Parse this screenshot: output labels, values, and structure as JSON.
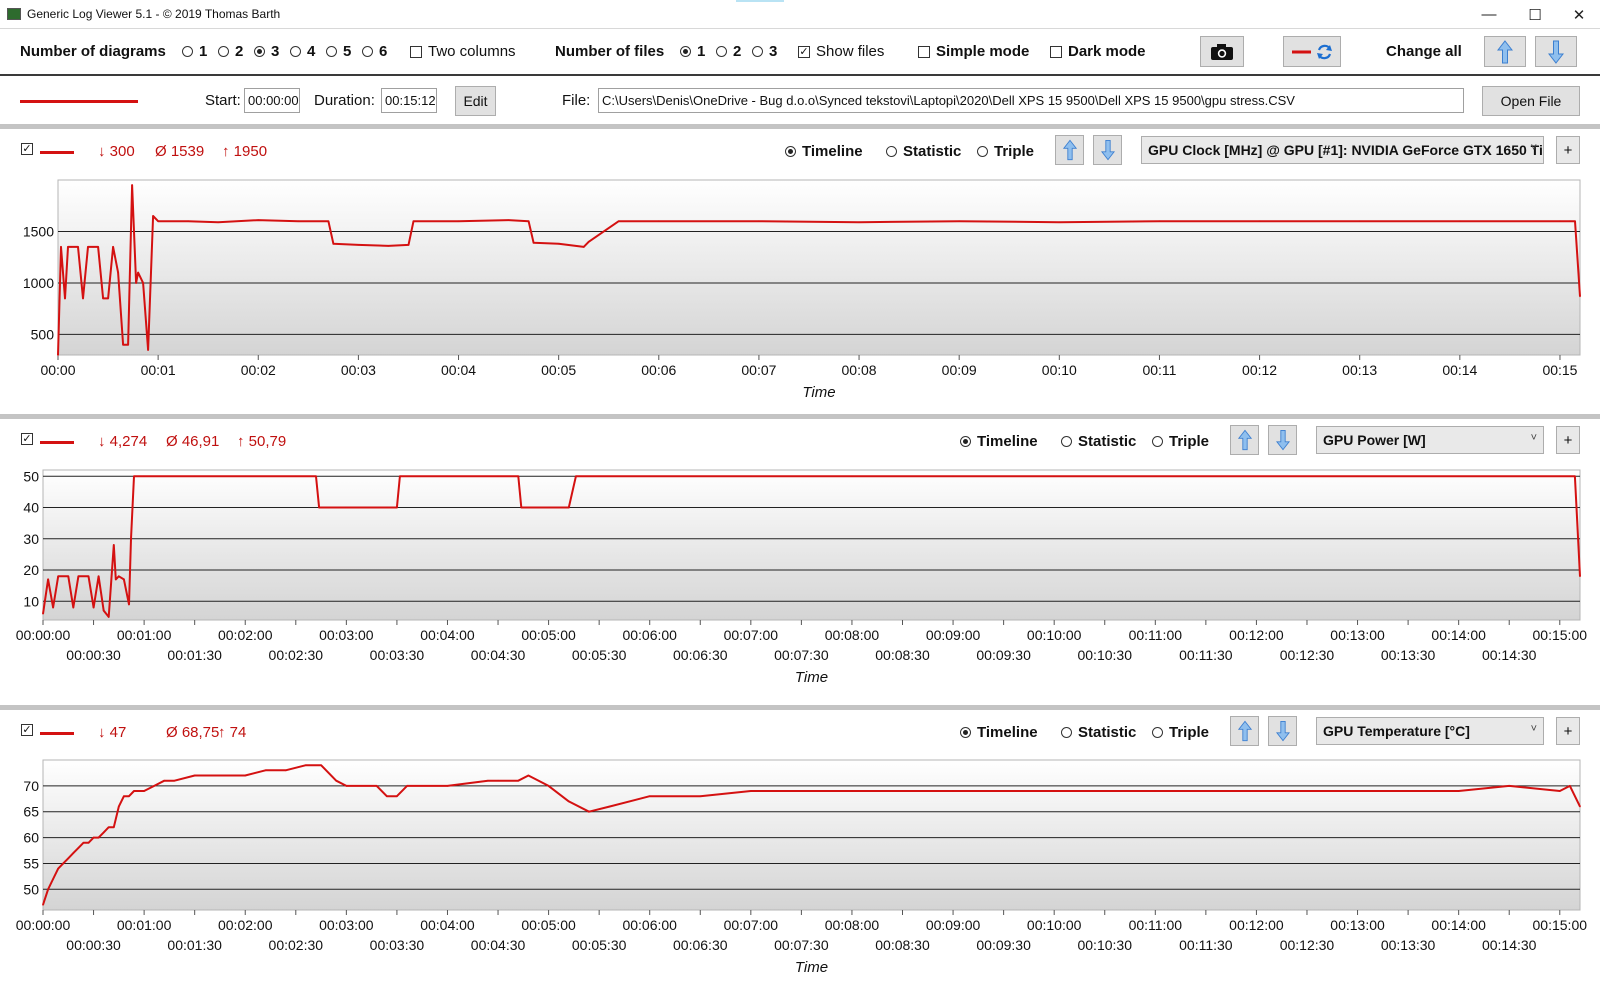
{
  "window": {
    "title": "Generic Log Viewer 5.1 - © 2019 Thomas Barth",
    "minimize_glyph": "—",
    "maximize_glyph": "☐",
    "close_glyph": "✕"
  },
  "toolbar": {
    "diagrams_label": "Number of diagrams",
    "diagram_options": [
      "1",
      "2",
      "3",
      "4",
      "5",
      "6"
    ],
    "diagrams_selected": "3",
    "two_columns_label": "Two columns",
    "files_label": "Number of files",
    "file_options": [
      "1",
      "2",
      "3"
    ],
    "files_selected": "1",
    "show_files_label": "Show files",
    "show_files_checked": true,
    "simple_mode_label": "Simple mode",
    "dark_mode_label": "Dark mode",
    "screenshot_icon": "camera-icon",
    "swap_icon": "swap-icon",
    "change_all_label": "Change all"
  },
  "file_row": {
    "start_label": "Start:",
    "start_value": "00:00:00",
    "duration_label": "Duration:",
    "duration_value": "00:15:12",
    "edit_label": "Edit",
    "file_label": "File:",
    "file_path": "C:\\Users\\Denis\\OneDrive - Bug d.o.o\\Synced tekstovi\\Laptopi\\2020\\Dell XPS 15 9500\\Dell XPS 15 9500\\gpu stress.CSV",
    "open_file_label": "Open File",
    "line_color": "#d41111"
  },
  "mode_labels": {
    "timeline": "Timeline",
    "statistic": "Statistic",
    "triple": "Triple"
  },
  "panels": [
    {
      "min": "↓ 300",
      "avg": "Ø 1539",
      "max": "↑ 1950",
      "sensor": "GPU Clock [MHz] @ GPU [#1]: NVIDIA GeForce GTX 1650 Ti:",
      "mode": "Timeline",
      "plus": "+"
    },
    {
      "min": "↓ 4,274",
      "avg": "Ø 46,91",
      "max": "↑ 50,79",
      "sensor": "GPU Power [W]",
      "mode": "Timeline",
      "plus": "+"
    },
    {
      "min": "↓ 47",
      "avg": "Ø 68,75",
      "max": "↑ 74",
      "sensor": "GPU Temperature [°C]",
      "mode": "Timeline",
      "plus": "+"
    }
  ],
  "chart_data": [
    {
      "type": "line",
      "xlabel": "Time",
      "x_unit": "minutes",
      "xlim": [
        0,
        15.2
      ],
      "ylim": [
        300,
        2000
      ],
      "yticks": [
        500,
        1000,
        1500
      ],
      "ytick_labels": [
        "500",
        "1000",
        "1500"
      ],
      "xticks": [
        0,
        1,
        2,
        3,
        4,
        5,
        6,
        7,
        8,
        9,
        10,
        11,
        12,
        13,
        14,
        15
      ],
      "xtick_labels": [
        "00:00",
        "00:01",
        "00:02",
        "00:03",
        "00:04",
        "00:05",
        "00:06",
        "00:07",
        "00:08",
        "00:09",
        "00:10",
        "00:11",
        "00:12",
        "00:13",
        "00:14",
        "00:15"
      ],
      "grid": true,
      "color": "#d41111",
      "x": [
        0,
        0.03,
        0.07,
        0.1,
        0.13,
        0.2,
        0.25,
        0.3,
        0.35,
        0.4,
        0.45,
        0.5,
        0.55,
        0.6,
        0.65,
        0.7,
        0.74,
        0.78,
        0.8,
        0.85,
        0.9,
        0.95,
        1.0,
        1.3,
        1.6,
        2.0,
        2.4,
        2.7,
        2.75,
        3.0,
        3.3,
        3.5,
        3.55,
        4.0,
        4.5,
        4.7,
        4.75,
        5.0,
        5.25,
        5.3,
        5.6,
        6.0,
        7.0,
        8.0,
        9.0,
        10.0,
        11.0,
        12.0,
        13.0,
        14.0,
        15.0,
        15.1,
        15.15,
        15.2
      ],
      "y": [
        300,
        1350,
        850,
        1350,
        1350,
        1350,
        850,
        1350,
        1350,
        1350,
        850,
        850,
        1350,
        1100,
        400,
        400,
        1950,
        1000,
        1100,
        1000,
        350,
        1650,
        1600,
        1600,
        1590,
        1610,
        1600,
        1600,
        1380,
        1370,
        1360,
        1370,
        1600,
        1600,
        1610,
        1600,
        1390,
        1380,
        1350,
        1400,
        1600,
        1600,
        1600,
        1590,
        1600,
        1590,
        1600,
        1600,
        1600,
        1600,
        1600,
        1600,
        1600,
        870
      ]
    },
    {
      "type": "line",
      "xlabel": "Time",
      "x_unit": "minutes",
      "xlim": [
        0,
        15.2
      ],
      "ylim": [
        4,
        52
      ],
      "yticks": [
        10,
        20,
        30,
        40,
        50
      ],
      "ytick_labels": [
        "10",
        "20",
        "30",
        "40",
        "50"
      ],
      "xticks": [
        0,
        0.5,
        1,
        1.5,
        2,
        2.5,
        3,
        3.5,
        4,
        4.5,
        5,
        5.5,
        6,
        6.5,
        7,
        7.5,
        8,
        8.5,
        9,
        9.5,
        10,
        10.5,
        11,
        11.5,
        12,
        12.5,
        13,
        13.5,
        14,
        14.5,
        15
      ],
      "xtick_labels": [
        "00:00:00",
        "00:00:30",
        "00:01:00",
        "00:01:30",
        "00:02:00",
        "00:02:30",
        "00:03:00",
        "00:03:30",
        "00:04:00",
        "00:04:30",
        "00:05:00",
        "00:05:30",
        "00:06:00",
        "00:06:30",
        "00:07:00",
        "00:07:30",
        "00:08:00",
        "00:08:30",
        "00:09:00",
        "00:09:30",
        "00:10:00",
        "00:10:30",
        "00:11:00",
        "00:11:30",
        "00:12:00",
        "00:12:30",
        "00:13:00",
        "00:13:30",
        "00:14:00",
        "00:14:30",
        "00:15:00"
      ],
      "grid": true,
      "color": "#d41111",
      "x": [
        0,
        0.05,
        0.1,
        0.15,
        0.25,
        0.3,
        0.35,
        0.4,
        0.45,
        0.5,
        0.55,
        0.6,
        0.65,
        0.7,
        0.72,
        0.75,
        0.8,
        0.85,
        0.87,
        0.9,
        1.0,
        1.5,
        2.0,
        2.5,
        2.7,
        2.73,
        3.0,
        3.4,
        3.5,
        3.53,
        4.0,
        4.5,
        4.7,
        4.73,
        5.0,
        5.2,
        5.27,
        5.5,
        6.0,
        7.0,
        8.0,
        9.0,
        10.0,
        11.0,
        12.0,
        13.0,
        14.0,
        15.0,
        15.1,
        15.15,
        15.2
      ],
      "y": [
        6,
        17,
        8,
        18,
        18,
        8,
        18,
        18,
        18,
        8,
        18,
        7,
        5,
        28,
        17,
        18,
        17,
        9,
        30,
        50,
        50,
        50,
        50,
        50,
        50,
        40,
        40,
        40,
        40,
        50,
        50,
        50,
        50,
        40,
        40,
        40,
        50,
        50,
        50,
        50,
        50,
        50,
        50,
        50,
        50,
        50,
        50,
        50,
        50,
        50,
        18
      ]
    },
    {
      "type": "line",
      "xlabel": "Time",
      "x_unit": "minutes",
      "xlim": [
        0,
        15.2
      ],
      "ylim": [
        46,
        75
      ],
      "yticks": [
        50,
        55,
        60,
        65,
        70
      ],
      "ytick_labels": [
        "50",
        "55",
        "60",
        "65",
        "70"
      ],
      "xticks": [
        0,
        0.5,
        1,
        1.5,
        2,
        2.5,
        3,
        3.5,
        4,
        4.5,
        5,
        5.5,
        6,
        6.5,
        7,
        7.5,
        8,
        8.5,
        9,
        9.5,
        10,
        10.5,
        11,
        11.5,
        12,
        12.5,
        13,
        13.5,
        14,
        14.5,
        15
      ],
      "xtick_labels": [
        "00:00:00",
        "00:00:30",
        "00:01:00",
        "00:01:30",
        "00:02:00",
        "00:02:30",
        "00:03:00",
        "00:03:30",
        "00:04:00",
        "00:04:30",
        "00:05:00",
        "00:05:30",
        "00:06:00",
        "00:06:30",
        "00:07:00",
        "00:07:30",
        "00:08:00",
        "00:08:30",
        "00:09:00",
        "00:09:30",
        "00:10:00",
        "00:10:30",
        "00:11:00",
        "00:11:30",
        "00:12:00",
        "00:12:30",
        "00:13:00",
        "00:13:30",
        "00:14:00",
        "00:14:30",
        "00:15:00"
      ],
      "grid": true,
      "color": "#d41111",
      "x": [
        0,
        0.05,
        0.1,
        0.15,
        0.2,
        0.25,
        0.3,
        0.35,
        0.4,
        0.45,
        0.5,
        0.55,
        0.6,
        0.65,
        0.7,
        0.75,
        0.8,
        0.85,
        0.9,
        1.0,
        1.1,
        1.2,
        1.3,
        1.5,
        2.0,
        2.2,
        2.4,
        2.6,
        2.75,
        2.9,
        3.0,
        3.3,
        3.4,
        3.5,
        3.6,
        4.0,
        4.4,
        4.5,
        4.7,
        4.8,
        5.0,
        5.2,
        5.4,
        5.6,
        6.0,
        6.5,
        7.0,
        8.0,
        9.0,
        10.0,
        11.0,
        12.0,
        13.0,
        14.0,
        14.5,
        15.0,
        15.1,
        15.2
      ],
      "y": [
        47,
        50,
        52,
        54,
        55,
        56,
        57,
        58,
        59,
        59,
        60,
        60,
        61,
        62,
        62,
        66,
        68,
        68,
        69,
        69,
        70,
        71,
        71,
        72,
        72,
        73,
        73,
        74,
        74,
        71,
        70,
        70,
        68,
        68,
        70,
        70,
        71,
        71,
        71,
        72,
        70,
        67,
        65,
        66,
        68,
        68,
        69,
        69,
        69,
        69,
        69,
        69,
        69,
        69,
        70,
        69,
        70,
        66
      ]
    }
  ]
}
